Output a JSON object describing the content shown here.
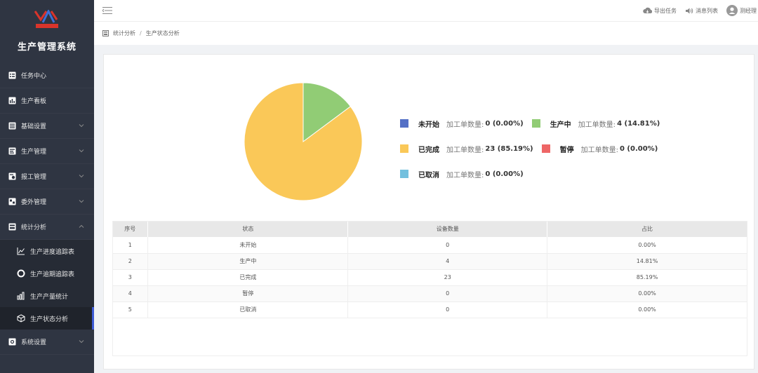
{
  "app": {
    "title": "生产管理系统"
  },
  "sidebar": {
    "items": [
      {
        "label": "任务中心",
        "icon": "task-icon",
        "has_children": false
      },
      {
        "label": "生产看板",
        "icon": "board-icon",
        "has_children": false
      },
      {
        "label": "基础设置",
        "icon": "list-icon",
        "has_children": true
      },
      {
        "label": "生产管理",
        "icon": "doc-icon",
        "has_children": true
      },
      {
        "label": "报工管理",
        "icon": "report-icon",
        "has_children": true
      },
      {
        "label": "委外管理",
        "icon": "outsource-icon",
        "has_children": true
      },
      {
        "label": "统计分析",
        "icon": "stats-icon",
        "has_children": true,
        "expanded": true
      }
    ],
    "sub_items": [
      {
        "label": "生产进度追踪表",
        "icon": "line-chart-icon"
      },
      {
        "label": "生产逾期追踪表",
        "icon": "ring-icon"
      },
      {
        "label": "生产产量统计",
        "icon": "bar-chart-icon"
      },
      {
        "label": "生产状态分析",
        "icon": "cube-icon",
        "active": true
      }
    ],
    "last_item": {
      "label": "系统设置",
      "icon": "settings-icon"
    }
  },
  "header": {
    "export_label": "导出任务",
    "messages_label": "消息列表",
    "user_label": "测经理"
  },
  "breadcrumb": {
    "parent": "统计分析",
    "current": "生产状态分析"
  },
  "legend": {
    "count_label": "加工单数量:"
  },
  "colors": {
    "not_started": "#5470c6",
    "in_progress": "#91cc75",
    "completed": "#fac858",
    "paused": "#ee6666",
    "cancelled": "#73c0de"
  },
  "chart_data": {
    "type": "pie",
    "slices": [
      {
        "name": "未开始",
        "value": 0,
        "percent": "0.00%",
        "color": "#5470c6"
      },
      {
        "name": "生产中",
        "value": 4,
        "percent": "14.81%",
        "color": "#91cc75"
      },
      {
        "name": "已完成",
        "value": 23,
        "percent": "85.19%",
        "color": "#fac858"
      },
      {
        "name": "暂停",
        "value": 0,
        "percent": "0.00%",
        "color": "#ee6666"
      },
      {
        "name": "已取消",
        "value": 0,
        "percent": "0.00%",
        "color": "#73c0de"
      }
    ]
  },
  "table": {
    "headers": [
      "序号",
      "状态",
      "设备数量",
      "占比"
    ],
    "rows": [
      [
        "1",
        "未开始",
        "0",
        "0.00%"
      ],
      [
        "2",
        "生产中",
        "4",
        "14.81%"
      ],
      [
        "3",
        "已完成",
        "23",
        "85.19%"
      ],
      [
        "4",
        "暂停",
        "0",
        "0.00%"
      ],
      [
        "5",
        "已取消",
        "0",
        "0.00%"
      ]
    ]
  }
}
